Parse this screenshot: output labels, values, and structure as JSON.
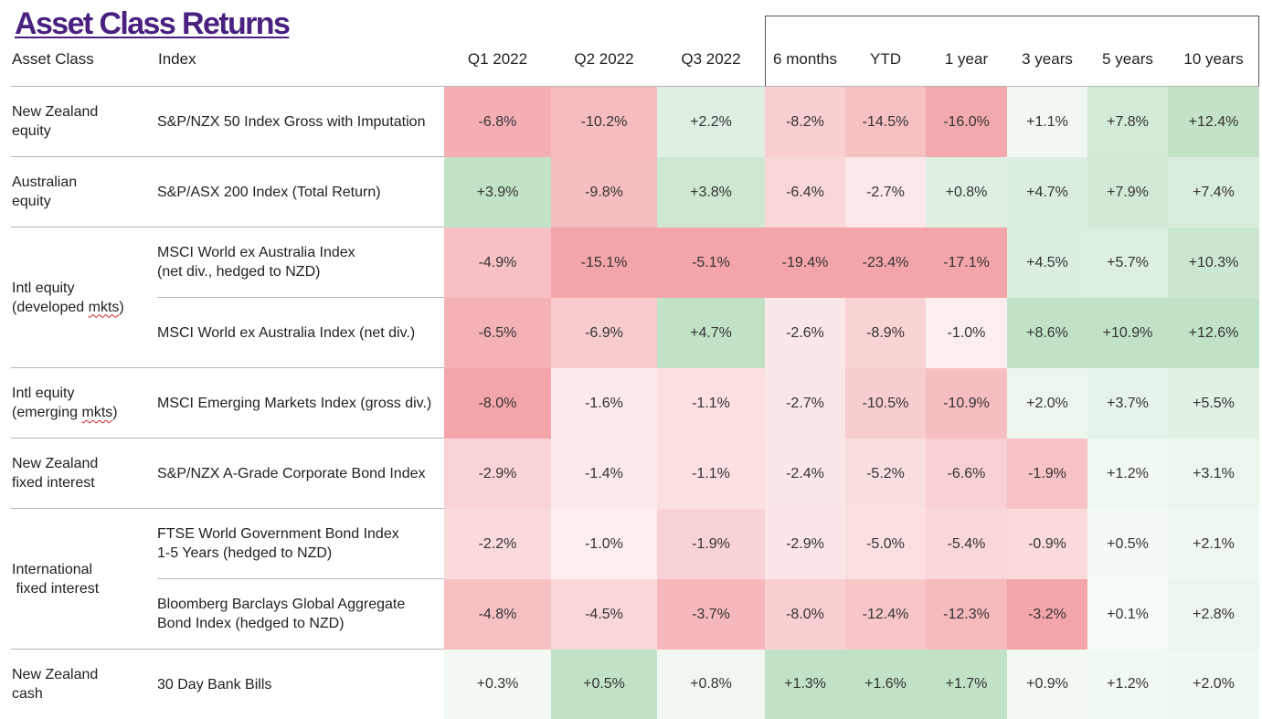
{
  "title": "Asset Class Returns",
  "headers": {
    "asset_class": "Asset Class",
    "index": "Index",
    "periods": [
      "Q1 2022",
      "Q2 2022",
      "Q3 2022",
      "6 months",
      "YTD",
      "1 year",
      "3 years",
      "5 years",
      "10 years"
    ]
  },
  "groups": [
    {
      "name": [
        "New Zealand",
        "equity"
      ]
    },
    {
      "name": [
        "Australian",
        "equity"
      ]
    },
    {
      "name": [
        "Intl equity",
        "(developed ",
        "mkts",
        ")"
      ]
    },
    {
      "name": [
        "Intl equity",
        "(emerging ",
        "mkts",
        ")"
      ]
    },
    {
      "name": [
        "New Zealand",
        "fixed interest"
      ]
    },
    {
      "name": [
        "International",
        " fixed interest"
      ]
    },
    {
      "name": [
        "New Zealand",
        "cash"
      ]
    }
  ],
  "rows": [
    {
      "index": [
        "S&P/NZX 50 Index Gross with Imputation"
      ],
      "values": [
        "-6.8%",
        "-10.2%",
        "+2.2%",
        "-8.2%",
        "-14.5%",
        "-16.0%",
        "+1.1%",
        "+7.8%",
        "+12.4%"
      ]
    },
    {
      "index": [
        "S&P/ASX 200 Index (Total Return)"
      ],
      "values": [
        "+3.9%",
        "-9.8%",
        "+3.8%",
        "-6.4%",
        "-2.7%",
        "+0.8%",
        "+4.7%",
        "+7.9%",
        "+7.4%"
      ]
    },
    {
      "index": [
        "MSCI World ex Australia Index",
        "(net div., hedged to NZD)"
      ],
      "values": [
        "-4.9%",
        "-15.1%",
        "-5.1%",
        "-19.4%",
        "-23.4%",
        "-17.1%",
        "+4.5%",
        "+5.7%",
        "+10.3%"
      ]
    },
    {
      "index": [
        "MSCI World ex Australia Index (net div.)"
      ],
      "values": [
        "-6.5%",
        "-6.9%",
        "+4.7%",
        "-2.6%",
        "-8.9%",
        "-1.0%",
        "+8.6%",
        "+10.9%",
        "+12.6%"
      ]
    },
    {
      "index": [
        "MSCI Emerging Markets Index (gross div.)"
      ],
      "values": [
        "-8.0%",
        "-1.6%",
        "-1.1%",
        "-2.7%",
        "-10.5%",
        "-10.9%",
        "+2.0%",
        "+3.7%",
        "+5.5%"
      ]
    },
    {
      "index": [
        "S&P/NZX A-Grade Corporate Bond Index"
      ],
      "values": [
        "-2.9%",
        "-1.4%",
        "-1.1%",
        "-2.4%",
        "-5.2%",
        "-6.6%",
        "-1.9%",
        "+1.2%",
        "+3.1%"
      ]
    },
    {
      "index": [
        "FTSE World Government Bond Index",
        "1-5 Years (hedged to NZD)"
      ],
      "values": [
        "-2.2%",
        "-1.0%",
        "-1.9%",
        "-2.9%",
        "-5.0%",
        "-5.4%",
        "-0.9%",
        "+0.5%",
        "+2.1%"
      ]
    },
    {
      "index": [
        "Bloomberg Barclays Global Aggregate",
        "Bond Index (hedged to NZD)"
      ],
      "values": [
        "-4.8%",
        "-4.5%",
        "-3.7%",
        "-8.0%",
        "-12.4%",
        "-12.3%",
        "-3.2%",
        "+0.1%",
        "+2.8%"
      ]
    },
    {
      "index": [
        "30 Day Bank Bills"
      ],
      "values": [
        "+0.3%",
        "+0.5%",
        "+0.8%",
        "+1.3%",
        "+1.6%",
        "+1.7%",
        "+0.9%",
        "+1.2%",
        "+2.0%"
      ]
    }
  ],
  "colors": {
    "title": "#4a2180",
    "negative_scale": [
      "#fdf5f5",
      "#f4a5aa"
    ],
    "positive_scale": [
      "#f6fbf7",
      "#c2e2c7"
    ]
  }
}
